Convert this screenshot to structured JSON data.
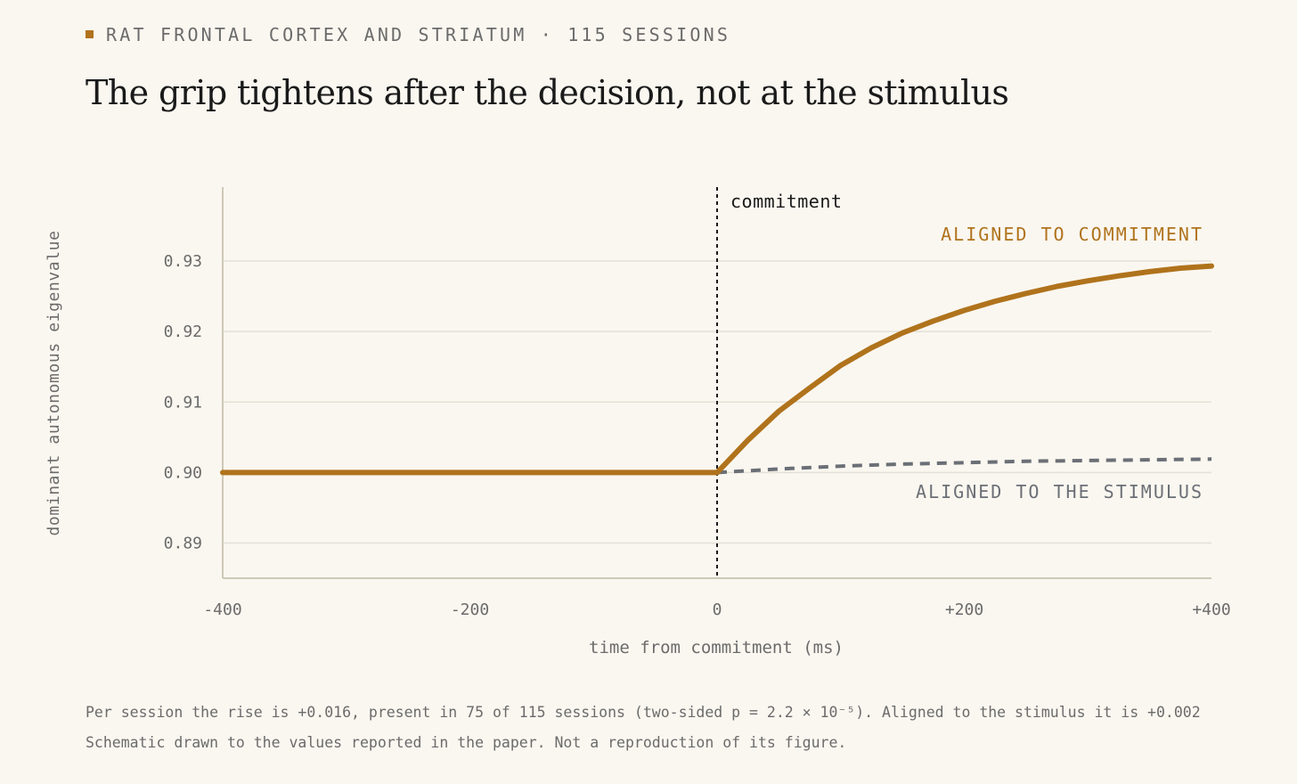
{
  "header": {
    "kicker": "RAT FRONTAL CORTEX AND STRIATUM · 115 SESSIONS",
    "title": "The grip tightens after the decision, not at the stimulus"
  },
  "footnotes": {
    "line1": "Per session the rise is +0.016, present in 75 of 115 sessions (two-sided p = 2.2 × 10⁻⁵). Aligned to the stimulus it is +0.002",
    "line2": "Schematic drawn to the values reported in the paper. Not a reproduction of its figure."
  },
  "colors": {
    "accent": "#b0731c",
    "stimulus": "#6b6f76",
    "grid": "#e4e0d6",
    "axis": "#cfc9bb",
    "muted_text": "#6b6b6b",
    "background": "#faf7f0"
  },
  "chart_data": {
    "type": "line",
    "xlabel": "time from commitment (ms)",
    "ylabel": "dominant autonomous eigenvalue",
    "xlim": [
      -400,
      400
    ],
    "ylim": [
      0.885,
      0.9405
    ],
    "x_ticks": [
      -400,
      -200,
      0,
      200,
      400
    ],
    "x_tick_labels": [
      "-400",
      "-200",
      "0",
      "+200",
      "+400"
    ],
    "y_ticks": [
      0.89,
      0.9,
      0.91,
      0.92,
      0.93
    ],
    "y_tick_labels": [
      "0.89",
      "0.90",
      "0.91",
      "0.92",
      "0.93"
    ],
    "grid": true,
    "commitment_marker": {
      "x": 0,
      "label": "commitment"
    },
    "series": [
      {
        "name": "ALIGNED TO COMMITMENT",
        "color": "#b0731c",
        "style": "solid",
        "points": [
          [
            -400,
            0.9
          ],
          [
            -200,
            0.9
          ],
          [
            0,
            0.9
          ],
          [
            25,
            0.9046
          ],
          [
            50,
            0.9087
          ],
          [
            75,
            0.912
          ],
          [
            100,
            0.9152
          ],
          [
            125,
            0.9177
          ],
          [
            150,
            0.9198
          ],
          [
            175,
            0.9215
          ],
          [
            200,
            0.923
          ],
          [
            225,
            0.9243
          ],
          [
            250,
            0.9254
          ],
          [
            275,
            0.9264
          ],
          [
            300,
            0.9272
          ],
          [
            325,
            0.9279
          ],
          [
            350,
            0.9285
          ],
          [
            375,
            0.929
          ],
          [
            400,
            0.9293
          ]
        ]
      },
      {
        "name": "ALIGNED TO THE STIMULUS",
        "color": "#6b6f76",
        "style": "dashed",
        "points": [
          [
            0,
            0.9
          ],
          [
            50,
            0.9005
          ],
          [
            100,
            0.9009
          ],
          [
            150,
            0.9012
          ],
          [
            200,
            0.9014
          ],
          [
            250,
            0.9016
          ],
          [
            300,
            0.9017
          ],
          [
            350,
            0.9018
          ],
          [
            400,
            0.9019
          ]
        ]
      }
    ]
  }
}
